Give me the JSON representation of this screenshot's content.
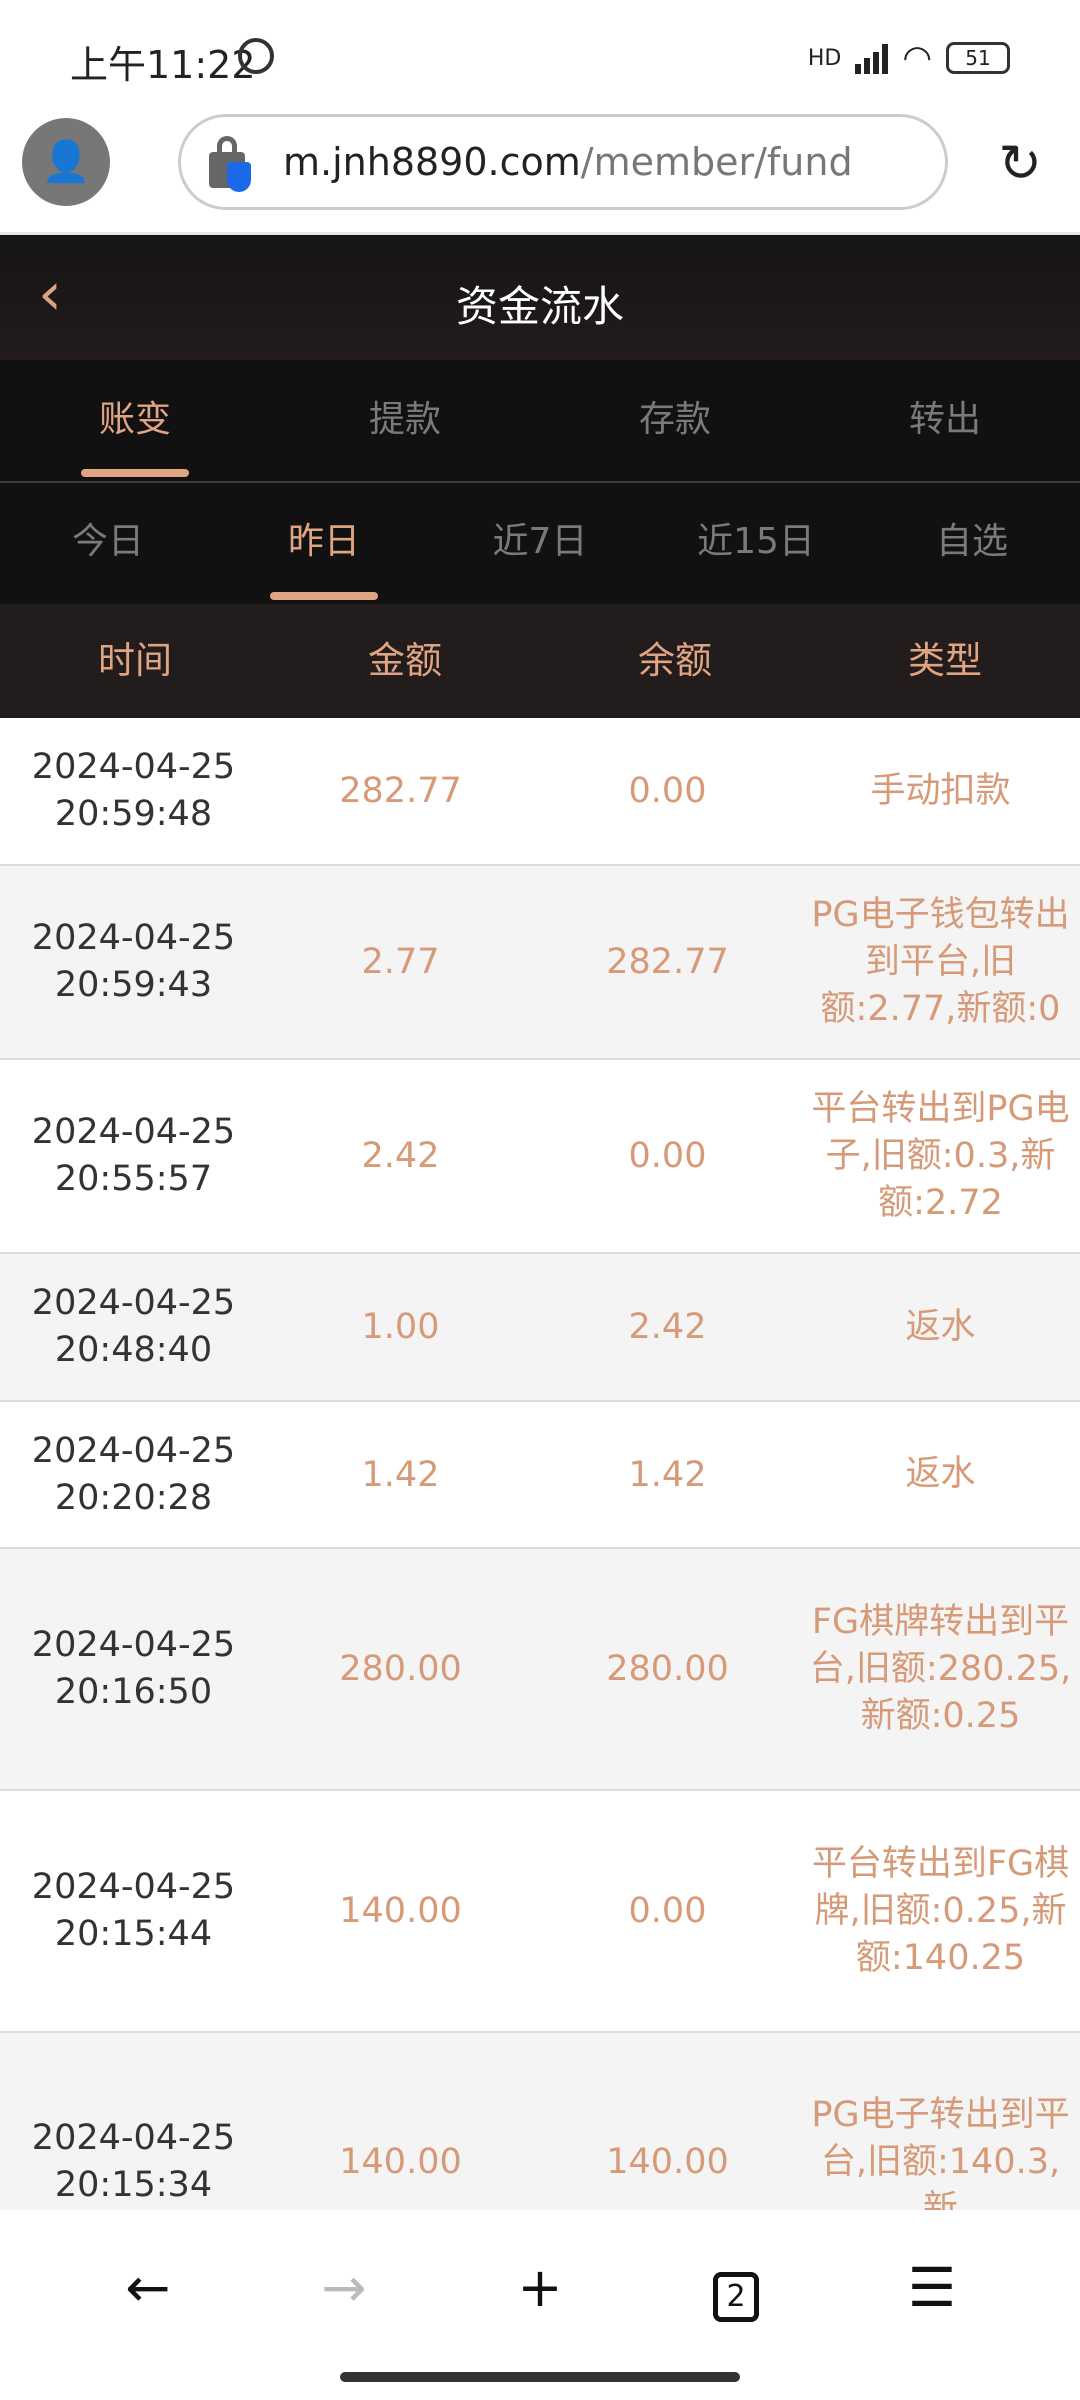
{
  "status_bar": {
    "time": "上午11:22",
    "network": "HD",
    "battery": "51"
  },
  "browser": {
    "url_domain": "m.jnh8890.com",
    "url_path": "/member/fund",
    "tab_count": "2"
  },
  "page": {
    "title": "资金流水"
  },
  "main_tabs": [
    {
      "label": "账变",
      "active": true
    },
    {
      "label": "提款"
    },
    {
      "label": "存款"
    },
    {
      "label": "转出"
    }
  ],
  "period_tabs": [
    {
      "label": "今日"
    },
    {
      "label": "昨日",
      "active": true
    },
    {
      "label": "近7日"
    },
    {
      "label": "近15日"
    },
    {
      "label": "自选"
    }
  ],
  "table": {
    "headers": [
      "时间",
      "金额",
      "余额",
      "类型"
    ],
    "rows": [
      {
        "date": "2024-04-25",
        "time": "20:59:48",
        "amount": "282.77",
        "balance": "0.00",
        "type": "手动扣款"
      },
      {
        "date": "2024-04-25",
        "time": "20:59:43",
        "amount": "2.77",
        "balance": "282.77",
        "type": "PG电子钱包转出到平台,旧额:2.77,新额:0"
      },
      {
        "date": "2024-04-25",
        "time": "20:55:57",
        "amount": "2.42",
        "balance": "0.00",
        "type": "平台转出到PG电子,旧额:0.3,新额:2.72"
      },
      {
        "date": "2024-04-25",
        "time": "20:48:40",
        "amount": "1.00",
        "balance": "2.42",
        "type": "返水"
      },
      {
        "date": "2024-04-25",
        "time": "20:20:28",
        "amount": "1.42",
        "balance": "1.42",
        "type": "返水"
      },
      {
        "date": "2024-04-25",
        "time": "20:16:50",
        "amount": "280.00",
        "balance": "280.00",
        "type": "FG棋牌转出到平台,旧额:280.25,新额:0.25"
      },
      {
        "date": "2024-04-25",
        "time": "20:15:44",
        "amount": "140.00",
        "balance": "0.00",
        "type": "平台转出到FG棋牌,旧额:0.25,新额:140.25"
      },
      {
        "date": "2024-04-25",
        "time": "20:15:34",
        "amount": "140.00",
        "balance": "140.00",
        "type": "PG电子转出到平台,旧额:140.3,新"
      }
    ]
  },
  "colors": {
    "accent": "#e0a482",
    "header_bg": "#1a1616",
    "tab_bg": "#111111"
  }
}
